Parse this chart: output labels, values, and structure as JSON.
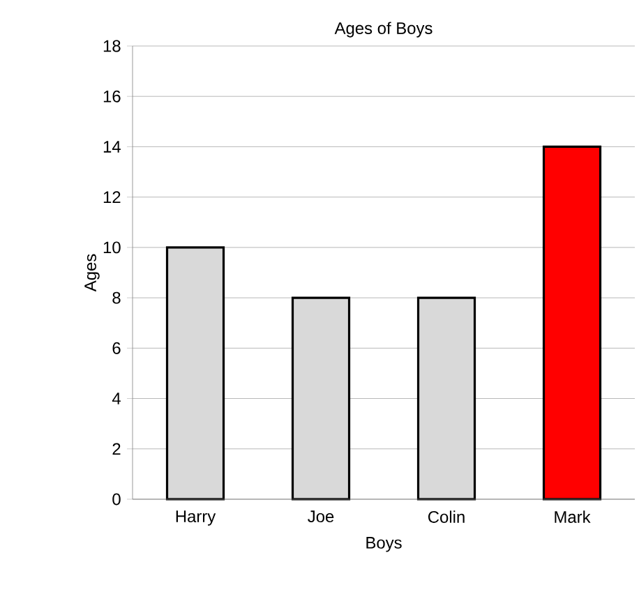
{
  "chart_data": {
    "type": "bar",
    "title": "Ages of Boys",
    "xlabel": "Boys",
    "ylabel": "Ages",
    "categories": [
      "Harry",
      "Joe",
      "Colin",
      "Mark"
    ],
    "values": [
      10,
      8,
      8,
      14
    ],
    "colors": [
      "#d9d9d9",
      "#d9d9d9",
      "#d9d9d9",
      "#ff0000"
    ],
    "ylim": [
      0,
      18
    ],
    "yticks": [
      0,
      2,
      4,
      6,
      8,
      10,
      12,
      14,
      16,
      18
    ],
    "grid": "y"
  }
}
